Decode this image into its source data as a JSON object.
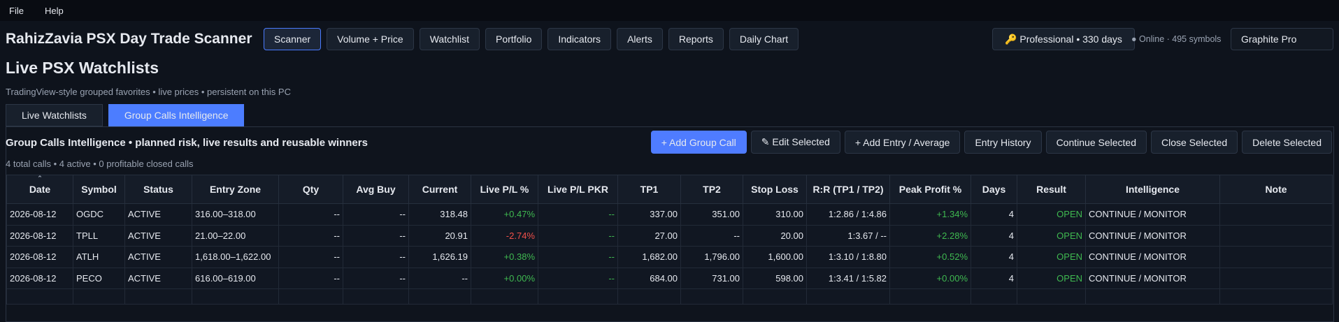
{
  "menu": [
    "File",
    "Help"
  ],
  "header": {
    "title": "RahizZavia PSX Day Trade Scanner",
    "nav": [
      "Scanner",
      "Volume + Price",
      "Watchlist",
      "Portfolio",
      "Indicators",
      "Alerts",
      "Reports",
      "Daily Chart"
    ],
    "license": "🔑 Professional • 330 days",
    "status": "● Online · 495 symbols",
    "theme": "Graphite Pro"
  },
  "page": {
    "title": "Live PSX Watchlists",
    "subtitle": "TradingView-style grouped favorites • live prices • persistent on this PC",
    "tabs": [
      "Live Watchlists",
      "Group Calls Intelligence"
    ]
  },
  "panel": {
    "title": "Group Calls Intelligence • planned risk, live results and reusable winners",
    "actions": [
      "+ Add Group Call",
      "✎ Edit Selected",
      "+ Add Entry / Average",
      "Entry History",
      "Continue Selected",
      "Close Selected",
      "Delete Selected"
    ],
    "summary": "4 total calls • 4 active • 0 profitable closed calls"
  },
  "table": {
    "columns": [
      "Date",
      "Symbol",
      "Status",
      "Entry Zone",
      "Qty",
      "Avg Buy",
      "Current",
      "Live P/L %",
      "Live P/L PKR",
      "TP1",
      "TP2",
      "Stop Loss",
      "R:R (TP1 / TP2)",
      "Peak Profit %",
      "Days",
      "Result",
      "Intelligence",
      "Note"
    ],
    "rows": [
      [
        "2026-08-12",
        "OGDC",
        "ACTIVE",
        "316.00–318.00",
        "--",
        "--",
        "318.48",
        "+0.47%",
        "--",
        "337.00",
        "351.00",
        "310.00",
        "1:2.86 / 1:4.86",
        "+1.34%",
        "4",
        "OPEN",
        "CONTINUE / MONITOR"
      ],
      [
        "2026-08-12",
        "TPLL",
        "ACTIVE",
        "21.00–22.00",
        "--",
        "--",
        "20.91",
        "-2.74%",
        "--",
        "27.00",
        "--",
        "20.00",
        "1:3.67 / --",
        "+2.28%",
        "4",
        "OPEN",
        "CONTINUE / MONITOR"
      ],
      [
        "2026-08-12",
        "ATLH",
        "ACTIVE",
        "1,618.00–1,622.00",
        "--",
        "--",
        "1,626.19",
        "+0.38%",
        "--",
        "1,682.00",
        "1,796.00",
        "1,600.00",
        "1:3.10 / 1:8.80",
        "+0.52%",
        "4",
        "OPEN",
        "CONTINUE / MONITOR"
      ],
      [
        "2026-08-12",
        "PECO",
        "ACTIVE",
        "616.00–619.00",
        "--",
        "--",
        "--",
        "+0.00%",
        "--",
        "684.00",
        "731.00",
        "598.00",
        "1:3.41 / 1:5.82",
        "+0.00%",
        "4",
        "OPEN",
        "CONTINUE / MONITOR"
      ]
    ]
  }
}
